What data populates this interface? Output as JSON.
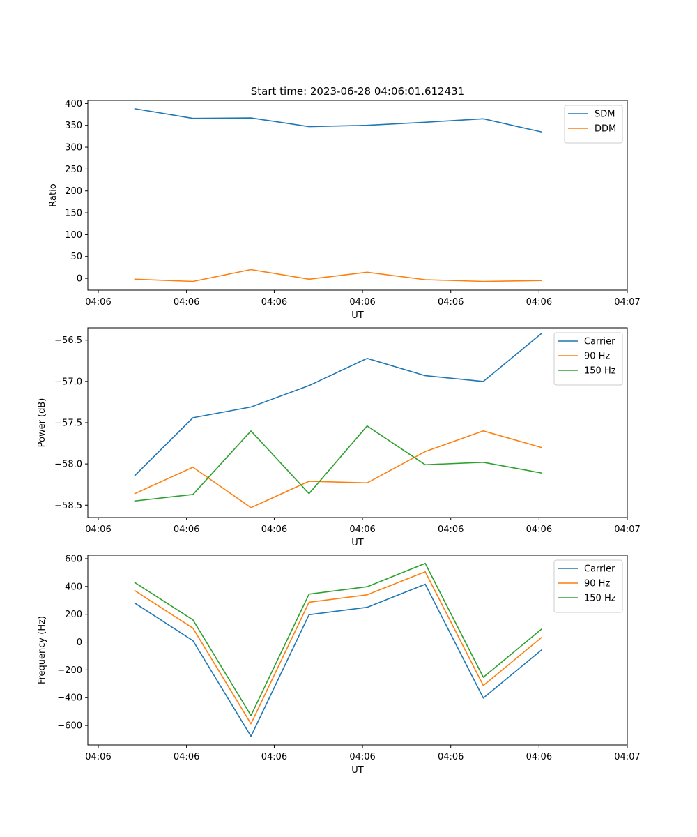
{
  "figure": {
    "title": "Start time: 2023-06-28 04:06:01.612431"
  },
  "chart_data": [
    {
      "type": "line",
      "xlabel": "UT",
      "ylabel": "Ratio",
      "x": [
        1,
        2,
        3,
        4,
        5,
        6,
        7,
        8
      ],
      "xlim": [
        0.19,
        9.48
      ],
      "xticks": [
        0.37,
        1.89,
        3.4,
        4.92,
        6.44,
        7.96,
        9.48
      ],
      "xtick_labels": [
        "04:06",
        "04:06",
        "04:06",
        "04:06",
        "04:06",
        "04:06",
        "04:07"
      ],
      "ylim": [
        -27,
        407
      ],
      "yticks": [
        0,
        50,
        100,
        150,
        200,
        250,
        300,
        350,
        400
      ],
      "ytick_labels": [
        "0",
        "50",
        "100",
        "150",
        "200",
        "250",
        "300",
        "350",
        "400"
      ],
      "grid": false,
      "legend": "top-right",
      "series": [
        {
          "name": "SDM",
          "color": "#1f77b4",
          "values": [
            388,
            366,
            367,
            347,
            350,
            357,
            365,
            335
          ]
        },
        {
          "name": "DDM",
          "color": "#ff7f0e",
          "values": [
            -2,
            -7,
            20,
            -2,
            14,
            -3,
            -7,
            -5
          ]
        }
      ]
    },
    {
      "type": "line",
      "xlabel": "UT",
      "ylabel": "Power (dB)",
      "x": [
        1,
        2,
        3,
        4,
        5,
        6,
        7,
        8
      ],
      "xlim": [
        0.19,
        9.48
      ],
      "xticks": [
        0.37,
        1.89,
        3.4,
        4.92,
        6.44,
        7.96,
        9.48
      ],
      "xtick_labels": [
        "04:06",
        "04:06",
        "04:06",
        "04:06",
        "04:06",
        "04:06",
        "04:07"
      ],
      "ylim": [
        -58.65,
        -56.35
      ],
      "yticks": [
        -58.5,
        -58.0,
        -57.5,
        -57.0,
        -56.5
      ],
      "ytick_labels": [
        "−58.5",
        "−58.0",
        "−57.5",
        "−57.0",
        "−56.5"
      ],
      "grid": false,
      "legend": "top-right",
      "series": [
        {
          "name": "Carrier",
          "color": "#1f77b4",
          "values": [
            -58.14,
            -57.44,
            -57.31,
            -57.05,
            -56.72,
            -56.93,
            -57.0,
            -56.42
          ]
        },
        {
          "name": "90 Hz",
          "color": "#ff7f0e",
          "values": [
            -58.36,
            -58.04,
            -58.53,
            -58.21,
            -58.23,
            -57.85,
            -57.6,
            -57.8
          ]
        },
        {
          "name": "150 Hz",
          "color": "#2ca02c",
          "values": [
            -58.45,
            -58.37,
            -57.6,
            -58.36,
            -57.54,
            -58.01,
            -57.98,
            -58.11
          ]
        }
      ]
    },
    {
      "type": "line",
      "xlabel": "UT",
      "ylabel": "Frequency (Hz)",
      "x": [
        1,
        2,
        3,
        4,
        5,
        6,
        7,
        8
      ],
      "xlim": [
        0.19,
        9.48
      ],
      "xticks": [
        0.37,
        1.89,
        3.4,
        4.92,
        6.44,
        7.96,
        9.48
      ],
      "xtick_labels": [
        "04:06",
        "04:06",
        "04:06",
        "04:06",
        "04:06",
        "04:06",
        "04:07"
      ],
      "ylim": [
        -740,
        625
      ],
      "yticks": [
        -600,
        -400,
        -200,
        0,
        200,
        400,
        600
      ],
      "ytick_labels": [
        "−600",
        "−400",
        "−200",
        "0",
        "200",
        "400",
        "600"
      ],
      "grid": false,
      "legend": "top-right",
      "series": [
        {
          "name": "Carrier",
          "color": "#1f77b4",
          "values": [
            280,
            10,
            -678,
            197,
            250,
            416,
            -403,
            -58
          ]
        },
        {
          "name": "90 Hz",
          "color": "#ff7f0e",
          "values": [
            370,
            100,
            -588,
            287,
            340,
            506,
            -313,
            32
          ]
        },
        {
          "name": "150 Hz",
          "color": "#2ca02c",
          "values": [
            428,
            160,
            -528,
            345,
            398,
            566,
            -253,
            92
          ]
        }
      ]
    }
  ]
}
